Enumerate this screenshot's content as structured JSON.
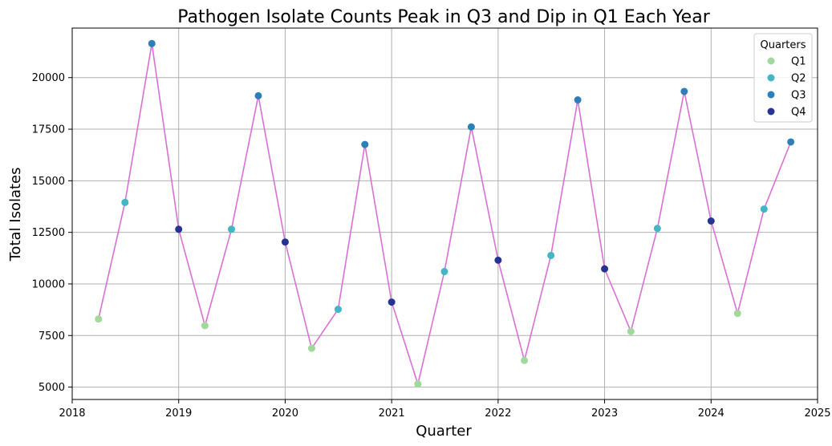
{
  "chart_data": {
    "type": "line",
    "title": "Pathogen Isolate Counts Peak in Q3 and Dip in Q1 Each Year",
    "xlabel": "Quarter",
    "ylabel": "Total Isolates",
    "xlim": [
      2018.0,
      2025.0
    ],
    "ylim": [
      4400,
      22400
    ],
    "x_ticks": [
      2018,
      2019,
      2020,
      2021,
      2022,
      2023,
      2024,
      2025
    ],
    "x_tick_labels": [
      "2018",
      "2019",
      "2020",
      "2021",
      "2022",
      "2023",
      "2024",
      "2025"
    ],
    "y_ticks": [
      5000,
      7500,
      10000,
      12500,
      15000,
      17500,
      20000
    ],
    "y_tick_labels": [
      "5000",
      "7500",
      "10000",
      "12500",
      "15000",
      "17500",
      "20000"
    ],
    "grid": true,
    "line_color": "#da70d6",
    "legend": {
      "title": "Quarters",
      "position": "top-right",
      "entries": [
        {
          "label": "Q1",
          "color": "#a1d99b"
        },
        {
          "label": "Q2",
          "color": "#41b6c4"
        },
        {
          "label": "Q3",
          "color": "#2c7fb8"
        },
        {
          "label": "Q4",
          "color": "#253494"
        }
      ]
    },
    "points": [
      {
        "x": "2018-04-01",
        "y": 8300,
        "quarter": "Q1"
      },
      {
        "x": "2018-07-01",
        "y": 13950,
        "quarter": "Q2"
      },
      {
        "x": "2018-10-01",
        "y": 21650,
        "quarter": "Q3"
      },
      {
        "x": "2019-01-01",
        "y": 12650,
        "quarter": "Q4"
      },
      {
        "x": "2019-04-01",
        "y": 7980,
        "quarter": "Q1"
      },
      {
        "x": "2019-07-01",
        "y": 12650,
        "quarter": "Q2"
      },
      {
        "x": "2019-10-01",
        "y": 19120,
        "quarter": "Q3"
      },
      {
        "x": "2020-01-01",
        "y": 12030,
        "quarter": "Q4"
      },
      {
        "x": "2020-04-01",
        "y": 6880,
        "quarter": "Q1"
      },
      {
        "x": "2020-07-01",
        "y": 8770,
        "quarter": "Q2"
      },
      {
        "x": "2020-10-01",
        "y": 16760,
        "quarter": "Q3"
      },
      {
        "x": "2021-01-01",
        "y": 9120,
        "quarter": "Q4"
      },
      {
        "x": "2021-04-01",
        "y": 5150,
        "quarter": "Q1"
      },
      {
        "x": "2021-07-01",
        "y": 10600,
        "quarter": "Q2"
      },
      {
        "x": "2021-10-01",
        "y": 17610,
        "quarter": "Q3"
      },
      {
        "x": "2022-01-01",
        "y": 11150,
        "quarter": "Q4"
      },
      {
        "x": "2022-04-01",
        "y": 6290,
        "quarter": "Q1"
      },
      {
        "x": "2022-07-01",
        "y": 11380,
        "quarter": "Q2"
      },
      {
        "x": "2022-10-01",
        "y": 18920,
        "quarter": "Q3"
      },
      {
        "x": "2023-01-01",
        "y": 10730,
        "quarter": "Q4"
      },
      {
        "x": "2023-04-01",
        "y": 7700,
        "quarter": "Q1"
      },
      {
        "x": "2023-07-01",
        "y": 12690,
        "quarter": "Q2"
      },
      {
        "x": "2023-10-01",
        "y": 19330,
        "quarter": "Q3"
      },
      {
        "x": "2024-01-01",
        "y": 13050,
        "quarter": "Q4"
      },
      {
        "x": "2024-04-01",
        "y": 8570,
        "quarter": "Q1"
      },
      {
        "x": "2024-07-01",
        "y": 13630,
        "quarter": "Q2"
      },
      {
        "x": "2024-10-01",
        "y": 16880,
        "quarter": "Q3"
      }
    ]
  }
}
